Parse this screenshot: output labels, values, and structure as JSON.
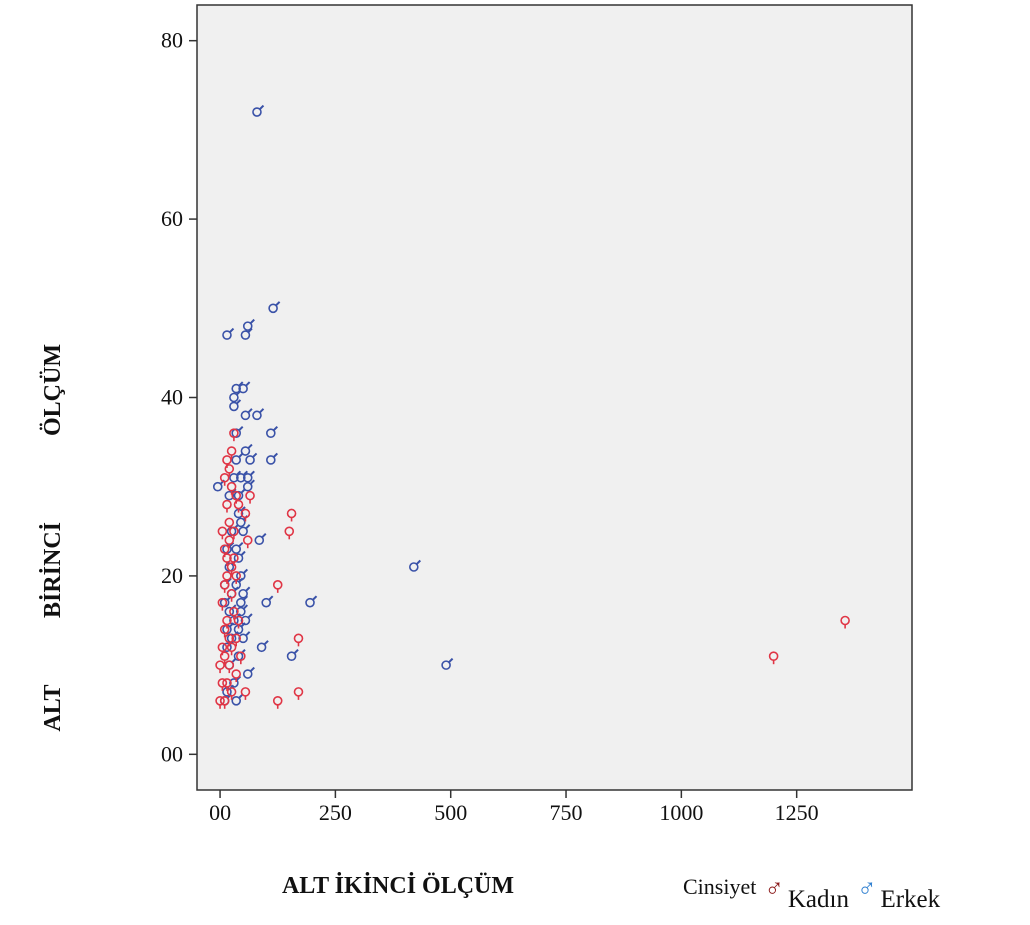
{
  "chart_data": {
    "type": "scatter",
    "title": "",
    "xlabel": "ALT İKİNCİ ÖLÇÜM",
    "ylabel_words": [
      "ALT",
      "BİRİNCİ",
      "ÖLÇÜM"
    ],
    "xlim": [
      -50,
      1500
    ],
    "ylim": [
      -4,
      84
    ],
    "x_ticks": [
      {
        "value": 0,
        "label": "00"
      },
      {
        "value": 250,
        "label": "250"
      },
      {
        "value": 500,
        "label": "500"
      },
      {
        "value": 750,
        "label": "750"
      },
      {
        "value": 1000,
        "label": "1000"
      },
      {
        "value": 1250,
        "label": "1250"
      }
    ],
    "y_ticks": [
      {
        "value": 0,
        "label": "00"
      },
      {
        "value": 20,
        "label": "20"
      },
      {
        "value": 40,
        "label": "40"
      },
      {
        "value": 60,
        "label": "60"
      },
      {
        "value": 80,
        "label": "80"
      }
    ],
    "grid": false,
    "background_color": "#f0f0f0",
    "legend": {
      "title": "Cinsiyet",
      "placement": "bottom-right",
      "entries": [
        {
          "label": "Kadın",
          "symbol": "♂",
          "color": "#8b1a1a"
        },
        {
          "label": "Erkek",
          "symbol": "♂",
          "color": "#2f7fd0"
        }
      ]
    },
    "series": [
      {
        "name": "Erkek",
        "symbol": "male",
        "color": "#3a52a8",
        "points": [
          [
            80,
            72
          ],
          [
            115,
            50
          ],
          [
            60,
            48
          ],
          [
            55,
            47
          ],
          [
            15,
            47
          ],
          [
            35,
            41
          ],
          [
            50,
            41
          ],
          [
            30,
            40
          ],
          [
            30,
            39
          ],
          [
            55,
            38
          ],
          [
            80,
            38
          ],
          [
            35,
            36
          ],
          [
            110,
            36
          ],
          [
            55,
            34
          ],
          [
            35,
            33
          ],
          [
            65,
            33
          ],
          [
            110,
            33
          ],
          [
            -5,
            30
          ],
          [
            60,
            30
          ],
          [
            45,
            31
          ],
          [
            20,
            29
          ],
          [
            40,
            29
          ],
          [
            40,
            27
          ],
          [
            45,
            26
          ],
          [
            85,
            24
          ],
          [
            15,
            23
          ],
          [
            35,
            23
          ],
          [
            40,
            22
          ],
          [
            20,
            21
          ],
          [
            45,
            20
          ],
          [
            420,
            21
          ],
          [
            10,
            19
          ],
          [
            35,
            19
          ],
          [
            25,
            18
          ],
          [
            45,
            17
          ],
          [
            100,
            17
          ],
          [
            195,
            17
          ],
          [
            20,
            16
          ],
          [
            45,
            16
          ],
          [
            30,
            15
          ],
          [
            55,
            15
          ],
          [
            15,
            14
          ],
          [
            40,
            14
          ],
          [
            25,
            13
          ],
          [
            50,
            13
          ],
          [
            90,
            12
          ],
          [
            15,
            12
          ],
          [
            40,
            11
          ],
          [
            155,
            11
          ],
          [
            490,
            10
          ],
          [
            20,
            10
          ],
          [
            60,
            9
          ],
          [
            30,
            8
          ],
          [
            15,
            7
          ],
          [
            35,
            6
          ],
          [
            10,
            6
          ],
          [
            25,
            25
          ],
          [
            50,
            25
          ],
          [
            30,
            31
          ],
          [
            60,
            31
          ],
          [
            10,
            17
          ],
          [
            50,
            18
          ]
        ]
      },
      {
        "name": "Kadın",
        "symbol": "female",
        "color": "#e03545",
        "points": [
          [
            1355,
            15
          ],
          [
            1200,
            11
          ],
          [
            155,
            27
          ],
          [
            150,
            25
          ],
          [
            125,
            19
          ],
          [
            170,
            13
          ],
          [
            170,
            7
          ],
          [
            125,
            6
          ],
          [
            30,
            36
          ],
          [
            25,
            34
          ],
          [
            15,
            33
          ],
          [
            20,
            32
          ],
          [
            10,
            31
          ],
          [
            25,
            30
          ],
          [
            65,
            29
          ],
          [
            35,
            29
          ],
          [
            15,
            28
          ],
          [
            40,
            28
          ],
          [
            55,
            27
          ],
          [
            5,
            25
          ],
          [
            30,
            25
          ],
          [
            20,
            24
          ],
          [
            60,
            24
          ],
          [
            15,
            22
          ],
          [
            30,
            22
          ],
          [
            15,
            20
          ],
          [
            35,
            20
          ],
          [
            10,
            19
          ],
          [
            25,
            18
          ],
          [
            5,
            17
          ],
          [
            30,
            16
          ],
          [
            15,
            15
          ],
          [
            40,
            15
          ],
          [
            10,
            14
          ],
          [
            20,
            13
          ],
          [
            35,
            13
          ],
          [
            5,
            12
          ],
          [
            25,
            12
          ],
          [
            10,
            11
          ],
          [
            45,
            11
          ],
          [
            20,
            10
          ],
          [
            0,
            10
          ],
          [
            35,
            9
          ],
          [
            15,
            8
          ],
          [
            5,
            8
          ],
          [
            25,
            7
          ],
          [
            55,
            7
          ],
          [
            10,
            6
          ],
          [
            0,
            6
          ],
          [
            20,
            26
          ],
          [
            25,
            21
          ],
          [
            10,
            23
          ]
        ]
      }
    ]
  }
}
